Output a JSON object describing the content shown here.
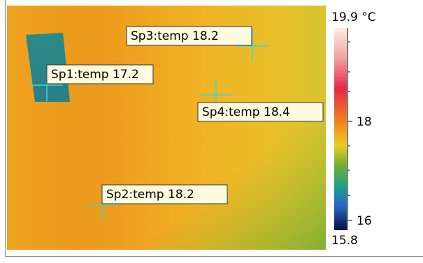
{
  "image": {
    "spots": [
      {
        "label": "Sp1:temp 17.2"
      },
      {
        "label": "Sp2:temp 18.2"
      },
      {
        "label": "Sp3:temp 18.2"
      },
      {
        "label": "Sp4:temp 18.4"
      }
    ]
  },
  "scale": {
    "max_label": "19.9 °C",
    "min_label": "15.8",
    "ticks": [
      "18",
      "16"
    ]
  }
}
